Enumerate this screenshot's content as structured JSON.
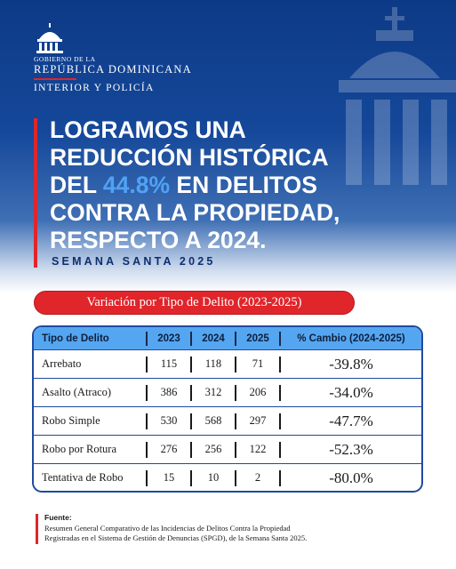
{
  "header": {
    "gov_small": "GOBIERNO DE LA",
    "gov_big": "REPÚBLICA DOMINICANA",
    "ministry": "INTERIOR Y POLICÍA"
  },
  "headline": {
    "line1": "LOGRAMOS UNA",
    "line2": "REDUCCIÓN HISTÓRICA",
    "line3_pre": "DEL ",
    "line3_highlight": "44.8%",
    "line3_post": " EN DELITOS",
    "line4": "CONTRA LA PROPIEDAD,",
    "line5": "RESPECTO A 2024."
  },
  "subtitle": "SEMANA SANTA 2025",
  "section_title": "Variación por Tipo de Delito (2023-2025)",
  "table": {
    "headers": [
      "Tipo de Delito",
      "2023",
      "2024",
      "2025",
      "% Cambio (2024-2025)"
    ],
    "rows": [
      [
        "Arrebato",
        "115",
        "118",
        "71",
        "-39.8%"
      ],
      [
        "Asalto (Atraco)",
        "386",
        "312",
        "206",
        "-34.0%"
      ],
      [
        "Robo Simple",
        "530",
        "568",
        "297",
        "-47.7%"
      ],
      [
        "Robo por Rotura",
        "276",
        "256",
        "122",
        "-52.3%"
      ],
      [
        "Tentativa de Robo",
        "15",
        "10",
        "2",
        "-80.0%"
      ]
    ]
  },
  "source": {
    "title": "Fuente:",
    "line1": "Resumen General Comparativo de las Incidencias de Delitos Contra la Propiedad",
    "line2": "Registradas en el Sistema de Gestión de Denuncias (SPGD), de la Semana Santa 2025."
  },
  "colors": {
    "primary_blue": "#15489a",
    "accent_red": "#e0252b",
    "highlight_blue": "#4fa3f5",
    "table_header": "#55a6f0"
  },
  "icons": {
    "logo": "capitol-dome-icon",
    "background": "building-watermark-icon"
  }
}
